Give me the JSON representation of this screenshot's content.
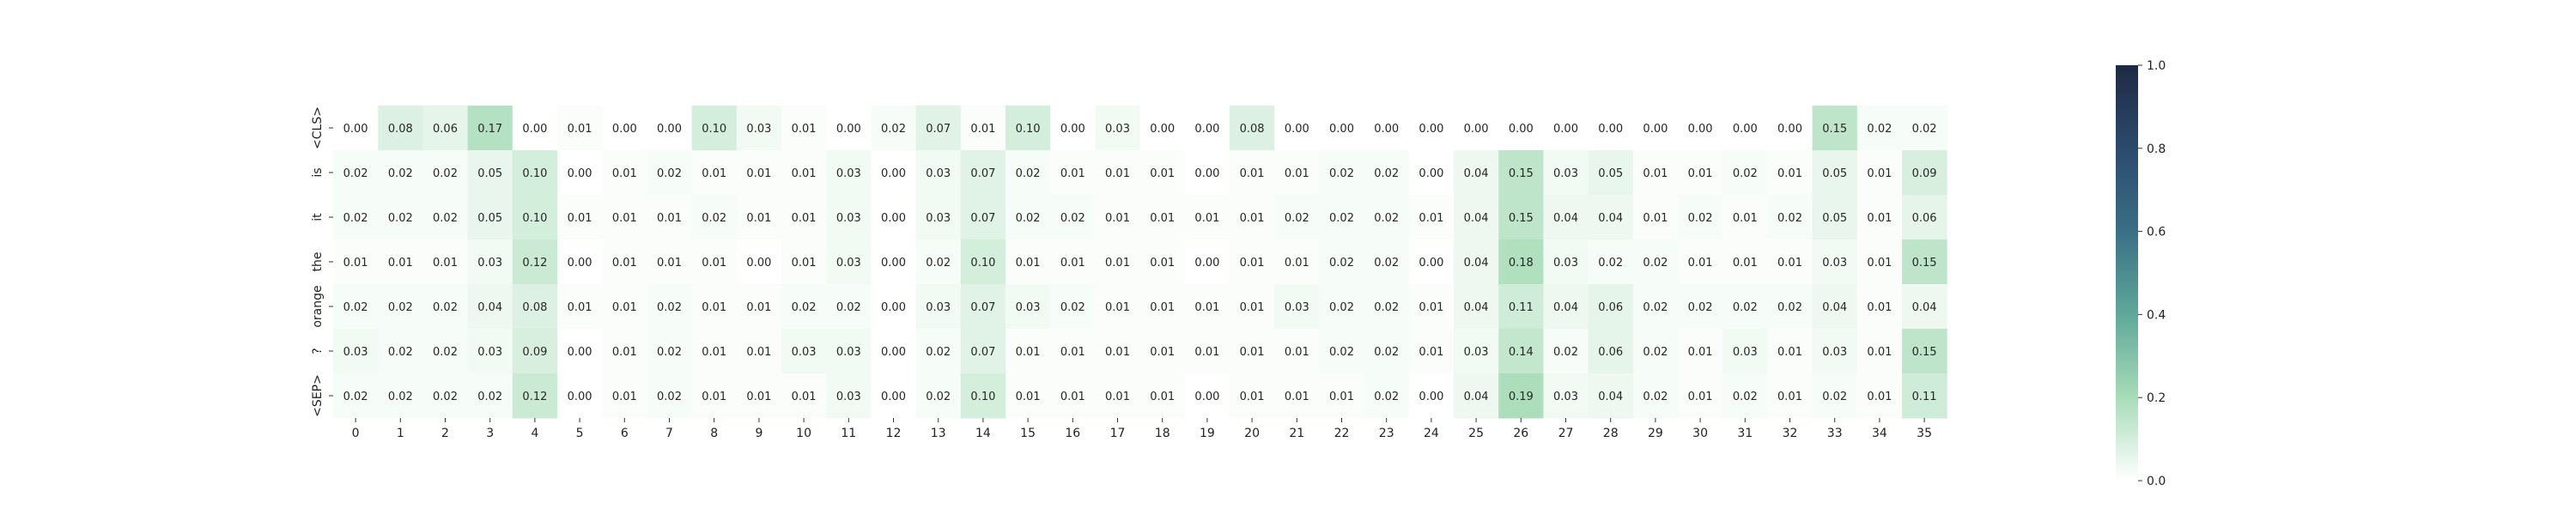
{
  "chart_data": {
    "type": "heatmap",
    "title": "",
    "xlabel": "",
    "ylabel": "",
    "x_tick_labels": [
      "0",
      "1",
      "2",
      "3",
      "4",
      "5",
      "6",
      "7",
      "8",
      "9",
      "10",
      "11",
      "12",
      "13",
      "14",
      "15",
      "16",
      "17",
      "18",
      "19",
      "20",
      "21",
      "22",
      "23",
      "24",
      "25",
      "26",
      "27",
      "28",
      "29",
      "30",
      "31",
      "32",
      "33",
      "34",
      "35"
    ],
    "y_tick_labels": [
      "<CLS>",
      "is",
      "it",
      "the",
      "orange",
      "?",
      "<SEP>"
    ],
    "values": [
      [
        0.0,
        0.08,
        0.06,
        0.17,
        0.0,
        0.01,
        0.0,
        0.0,
        0.1,
        0.03,
        0.01,
        0.0,
        0.02,
        0.07,
        0.01,
        0.1,
        0.0,
        0.03,
        0.0,
        0.0,
        0.08,
        0.0,
        0.0,
        0.0,
        0.0,
        0.0,
        0.0,
        0.0,
        0.0,
        0.0,
        0.0,
        0.0,
        0.0,
        0.15,
        0.02,
        0.02
      ],
      [
        0.02,
        0.02,
        0.02,
        0.05,
        0.1,
        0.0,
        0.01,
        0.02,
        0.01,
        0.01,
        0.01,
        0.03,
        0.0,
        0.03,
        0.07,
        0.02,
        0.01,
        0.01,
        0.01,
        0.0,
        0.01,
        0.01,
        0.02,
        0.02,
        0.0,
        0.04,
        0.15,
        0.03,
        0.05,
        0.01,
        0.01,
        0.02,
        0.01,
        0.05,
        0.01,
        0.09
      ],
      [
        0.02,
        0.02,
        0.02,
        0.05,
        0.1,
        0.01,
        0.01,
        0.01,
        0.02,
        0.01,
        0.01,
        0.03,
        0.0,
        0.03,
        0.07,
        0.02,
        0.02,
        0.01,
        0.01,
        0.01,
        0.01,
        0.02,
        0.02,
        0.02,
        0.01,
        0.04,
        0.15,
        0.04,
        0.04,
        0.01,
        0.02,
        0.01,
        0.02,
        0.05,
        0.01,
        0.06
      ],
      [
        0.01,
        0.01,
        0.01,
        0.03,
        0.12,
        0.0,
        0.01,
        0.01,
        0.01,
        0.0,
        0.01,
        0.03,
        0.0,
        0.02,
        0.1,
        0.01,
        0.01,
        0.01,
        0.01,
        0.0,
        0.01,
        0.01,
        0.02,
        0.02,
        0.0,
        0.04,
        0.18,
        0.03,
        0.02,
        0.02,
        0.01,
        0.01,
        0.01,
        0.03,
        0.01,
        0.15
      ],
      [
        0.02,
        0.02,
        0.02,
        0.04,
        0.08,
        0.01,
        0.01,
        0.02,
        0.01,
        0.01,
        0.02,
        0.02,
        0.0,
        0.03,
        0.07,
        0.03,
        0.02,
        0.01,
        0.01,
        0.01,
        0.01,
        0.03,
        0.02,
        0.02,
        0.01,
        0.04,
        0.11,
        0.04,
        0.06,
        0.02,
        0.02,
        0.02,
        0.02,
        0.04,
        0.01,
        0.04
      ],
      [
        0.03,
        0.02,
        0.02,
        0.03,
        0.09,
        0.0,
        0.01,
        0.02,
        0.01,
        0.01,
        0.03,
        0.03,
        0.0,
        0.02,
        0.07,
        0.01,
        0.01,
        0.01,
        0.01,
        0.01,
        0.01,
        0.01,
        0.02,
        0.02,
        0.01,
        0.03,
        0.14,
        0.02,
        0.06,
        0.02,
        0.01,
        0.03,
        0.01,
        0.03,
        0.01,
        0.15
      ],
      [
        0.02,
        0.02,
        0.02,
        0.02,
        0.12,
        0.0,
        0.01,
        0.02,
        0.01,
        0.01,
        0.01,
        0.03,
        0.0,
        0.02,
        0.1,
        0.01,
        0.01,
        0.01,
        0.01,
        0.0,
        0.01,
        0.01,
        0.01,
        0.02,
        0.0,
        0.04,
        0.19,
        0.03,
        0.04,
        0.02,
        0.01,
        0.02,
        0.01,
        0.02,
        0.01,
        0.11
      ]
    ],
    "value_format": "2 decimals",
    "colorbar": {
      "vmin": 0.0,
      "vmax": 1.0,
      "tick_labels": [
        "0.0",
        "0.2",
        "0.4",
        "0.6",
        "0.8",
        "1.0"
      ],
      "colormap_stops": [
        "#ffffff",
        "#a8dcb8",
        "#5fa89a",
        "#3a6f86",
        "#2c4a6d",
        "#1e2a44"
      ]
    },
    "grid": false,
    "legend": "colorbar-right"
  }
}
